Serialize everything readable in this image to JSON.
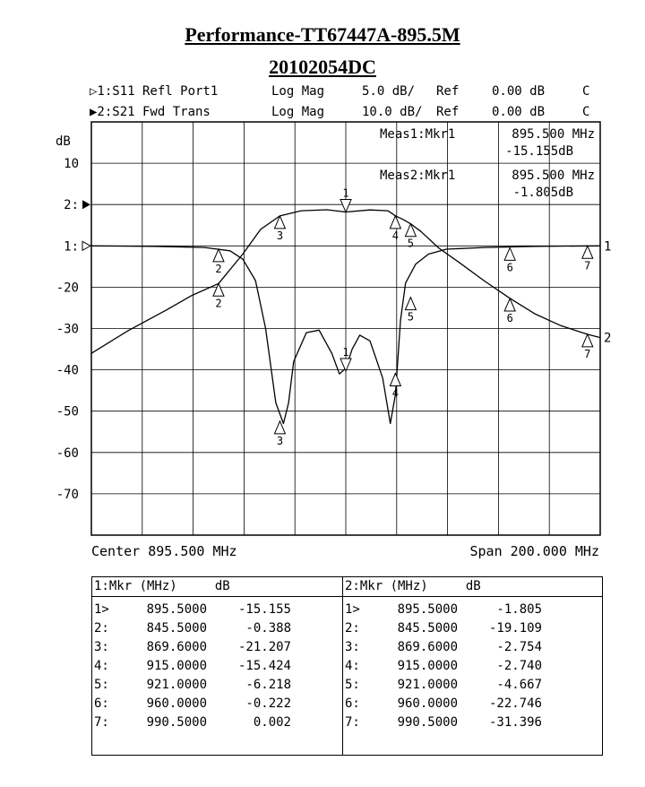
{
  "title": "Performance-TT67447A-895.5M",
  "subtitle": "20102054DC",
  "channels": [
    {
      "prefix": "▷1:S11",
      "param": "Refl Port1",
      "format": "Log Mag",
      "scale": "5.0 dB/",
      "ref": "Ref",
      "refval": "0.00 dB",
      "flag": "C"
    },
    {
      "prefix": "▶2:S21",
      "param": "Fwd Trans",
      "format": "Log Mag",
      "scale": "10.0 dB/",
      "ref": "Ref",
      "refval": "0.00 dB",
      "flag": "C"
    }
  ],
  "meas": [
    {
      "label": "Meas1:Mkr1",
      "freq": "895.500 MHz",
      "value": "-15.155dB"
    },
    {
      "label": "Meas2:Mkr1",
      "freq": "895.500 MHz",
      "value": "-1.805dB"
    }
  ],
  "y_unit": "dB",
  "y_tick_labels": [
    "10",
    "2:",
    "1:",
    "-20",
    "-30",
    "-40",
    "-50",
    "-60",
    "-70"
  ],
  "center_label": "Center 895.500 MHz",
  "span_label": "Span 200.000 MHz",
  "chart_data": {
    "type": "line",
    "xlim": [
      795.5,
      995.5
    ],
    "x_unit": "MHz",
    "series": [
      {
        "name": "S11 Refl Port1",
        "scale_db_per_div": 5,
        "ref_db": 0,
        "x": [
          795.5,
          820,
          840,
          850,
          855,
          860,
          864,
          868,
          871,
          873,
          875,
          880,
          885,
          890,
          893,
          895.5,
          898,
          901,
          905,
          910,
          913,
          915,
          917,
          919,
          923,
          928,
          935,
          950,
          970,
          995.5
        ],
        "y": [
          0,
          -0.05,
          -0.2,
          -0.6,
          -1.6,
          -4.2,
          -10.0,
          -19.0,
          -21.5,
          -19.0,
          -14.0,
          -10.5,
          -10.2,
          -13.0,
          -15.5,
          -14.8,
          -12.5,
          -10.8,
          -11.5,
          -16.0,
          -21.5,
          -18.0,
          -9.0,
          -4.5,
          -2.2,
          -1.0,
          -0.4,
          -0.2,
          -0.05,
          0
        ]
      },
      {
        "name": "S21 Fwd Trans",
        "scale_db_per_div": 10,
        "ref_db": 0,
        "x": [
          795.5,
          810,
          825,
          835,
          845.5,
          855,
          862,
          869.6,
          878,
          888,
          895.5,
          905,
          912,
          915,
          918,
          921,
          925,
          932,
          940,
          950,
          960,
          970,
          980,
          990.5,
          995.5
        ],
        "y": [
          -36.0,
          -30.5,
          -25.5,
          -22.0,
          -19.1,
          -12.0,
          -6.0,
          -2.75,
          -1.5,
          -1.25,
          -1.8,
          -1.3,
          -1.5,
          -2.74,
          -3.6,
          -4.67,
          -6.5,
          -10.5,
          -14.0,
          -18.5,
          -22.7,
          -26.5,
          -29.3,
          -31.4,
          -32.2
        ]
      }
    ],
    "markers": [
      {
        "n": "1",
        "x": 895.5,
        "s11": -15.155,
        "s21": -1.805
      },
      {
        "n": "2",
        "x": 845.5,
        "s11": -0.388,
        "s21": -19.109
      },
      {
        "n": "3",
        "x": 869.6,
        "s11": -21.207,
        "s21": -2.754
      },
      {
        "n": "4",
        "x": 915.0,
        "s11": -15.424,
        "s21": -2.74
      },
      {
        "n": "5",
        "x": 921.0,
        "s11": -6.218,
        "s21": -4.667
      },
      {
        "n": "6",
        "x": 960.0,
        "s11": -0.222,
        "s21": -22.746
      },
      {
        "n": "7",
        "x": 990.5,
        "s11": 0.002,
        "s21": -31.396
      }
    ]
  },
  "table": {
    "left": {
      "header": "1:Mkr (MHz)     dB",
      "rows": [
        {
          "id": "1>",
          "f": "895.5000",
          "v": "-15.155"
        },
        {
          "id": "2:",
          "f": "845.5000",
          "v": "-0.388"
        },
        {
          "id": "3:",
          "f": "869.6000",
          "v": "-21.207"
        },
        {
          "id": "4:",
          "f": "915.0000",
          "v": "-15.424"
        },
        {
          "id": "5:",
          "f": "921.0000",
          "v": "-6.218"
        },
        {
          "id": "6:",
          "f": "960.0000",
          "v": "-0.222"
        },
        {
          "id": "7:",
          "f": "990.5000",
          "v": "0.002"
        }
      ]
    },
    "right": {
      "header": "2:Mkr (MHz)     dB",
      "rows": [
        {
          "id": "1>",
          "f": "895.5000",
          "v": "-1.805"
        },
        {
          "id": "2:",
          "f": "845.5000",
          "v": "-19.109"
        },
        {
          "id": "3:",
          "f": "869.6000",
          "v": "-2.754"
        },
        {
          "id": "4:",
          "f": "915.0000",
          "v": "-2.740"
        },
        {
          "id": "5:",
          "f": "921.0000",
          "v": "-4.667"
        },
        {
          "id": "6:",
          "f": "960.0000",
          "v": "-22.746"
        },
        {
          "id": "7:",
          "f": "990.5000",
          "v": "-31.396"
        }
      ]
    }
  }
}
